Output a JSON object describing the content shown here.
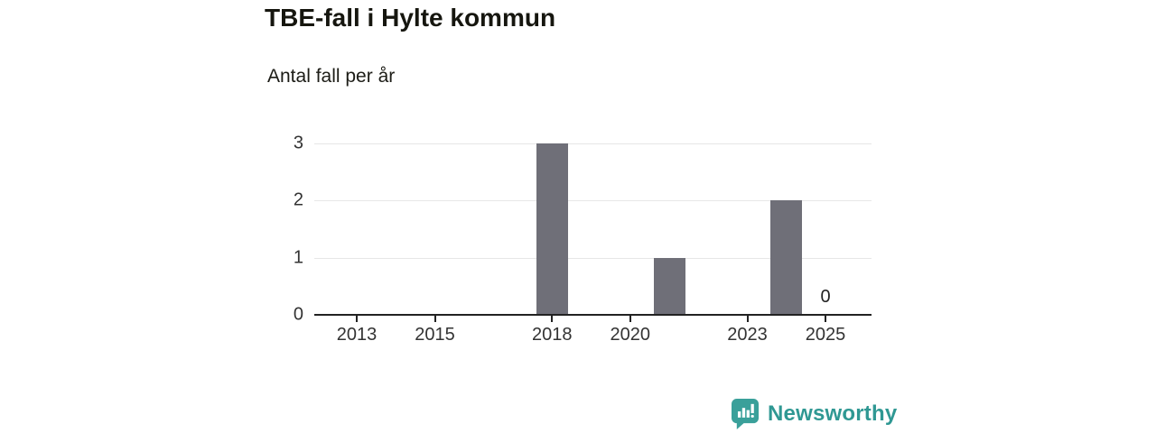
{
  "header": {
    "title": "TBE-fall i Hylte kommun",
    "subtitle": "Antal fall per år"
  },
  "chart_data": {
    "type": "bar",
    "title": "TBE-fall i Hylte kommun",
    "subtitle": "Antal fall per år",
    "ylabel": "Antal fall per år",
    "xlabel": "",
    "x": [
      2013,
      2014,
      2015,
      2016,
      2017,
      2018,
      2019,
      2020,
      2021,
      2022,
      2023,
      2024,
      2025
    ],
    "values": [
      0,
      0,
      0,
      0,
      0,
      3,
      0,
      0,
      1,
      0,
      0,
      2,
      0
    ],
    "xticks": [
      2013,
      2015,
      2018,
      2020,
      2023,
      2025
    ],
    "yticks": [
      0,
      1,
      2,
      3
    ],
    "ylim": [
      0,
      3
    ],
    "grid": "horizontal",
    "legend": "none",
    "bar_color": "#6f6f78",
    "annotations": [
      {
        "x": 2025,
        "y": 0,
        "text": "0"
      }
    ]
  },
  "footer": {
    "brand": "Newsworthy",
    "brand_color": "#2f9893",
    "logo_icon": "newsworthy-speech-bubble-bar-chart-icon",
    "icon_color": "#3aa09a"
  }
}
